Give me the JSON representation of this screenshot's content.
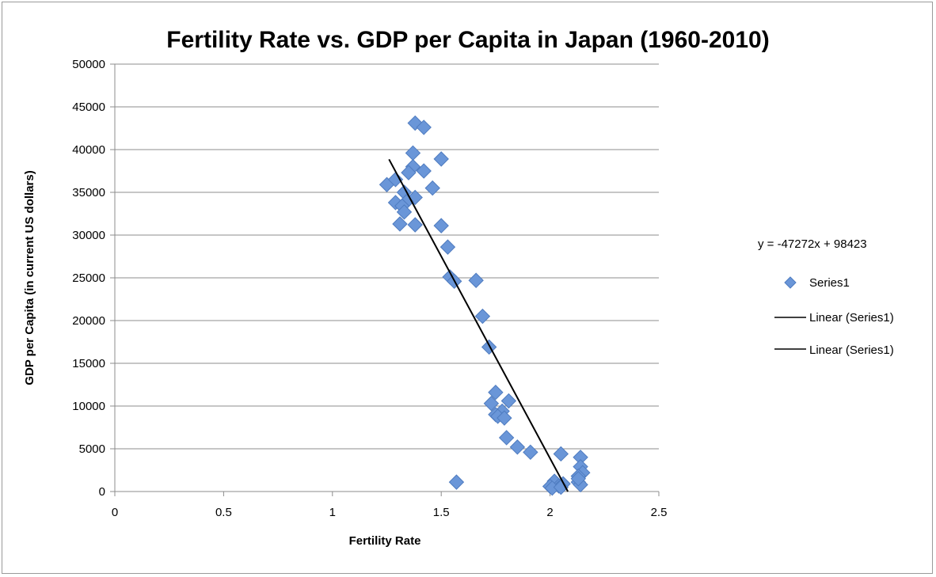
{
  "chart_data": {
    "type": "scatter",
    "title": "Fertility Rate vs. GDP per Capita in Japan (1960-2010)",
    "xlabel": "Fertility Rate",
    "ylabel": "GDP per Capita (in current US dollars)",
    "xlim": [
      0,
      2.5
    ],
    "ylim": [
      0,
      50000
    ],
    "xticks": [
      "0",
      "0.5",
      "1",
      "1.5",
      "2",
      "2.5"
    ],
    "yticks": [
      "0",
      "5000",
      "10000",
      "15000",
      "20000",
      "25000",
      "30000",
      "35000",
      "40000",
      "45000",
      "50000"
    ],
    "grid": "horizontal",
    "legend_position": "right",
    "marker_color": "#6a96d8",
    "series": [
      {
        "name": "Series1",
        "points": [
          [
            1.38,
            43100
          ],
          [
            1.42,
            42600
          ],
          [
            1.37,
            39600
          ],
          [
            1.5,
            38900
          ],
          [
            1.37,
            38000
          ],
          [
            1.42,
            37500
          ],
          [
            1.35,
            37300
          ],
          [
            1.25,
            35900
          ],
          [
            1.29,
            36500
          ],
          [
            1.46,
            35500
          ],
          [
            1.33,
            35000
          ],
          [
            1.38,
            34400
          ],
          [
            1.29,
            33800
          ],
          [
            1.34,
            33900
          ],
          [
            1.32,
            33400
          ],
          [
            1.33,
            32700
          ],
          [
            1.5,
            31100
          ],
          [
            1.31,
            31300
          ],
          [
            1.38,
            31200
          ],
          [
            1.53,
            28600
          ],
          [
            1.54,
            25100
          ],
          [
            1.56,
            24600
          ],
          [
            1.66,
            24700
          ],
          [
            1.69,
            20500
          ],
          [
            1.72,
            16900
          ],
          [
            1.75,
            11600
          ],
          [
            1.73,
            10300
          ],
          [
            1.81,
            10600
          ],
          [
            1.78,
            9400
          ],
          [
            1.75,
            9000
          ],
          [
            1.76,
            8800
          ],
          [
            1.79,
            8600
          ],
          [
            1.8,
            6300
          ],
          [
            1.85,
            5200
          ],
          [
            1.91,
            4600
          ],
          [
            1.57,
            1100
          ],
          [
            2.05,
            4400
          ],
          [
            2.14,
            4000
          ],
          [
            2.14,
            2900
          ],
          [
            2.15,
            2200
          ],
          [
            2.13,
            1800
          ],
          [
            2.02,
            1200
          ],
          [
            2.0,
            600
          ],
          [
            2.04,
            650
          ],
          [
            2.06,
            900
          ],
          [
            2.13,
            1100
          ],
          [
            2.14,
            800
          ],
          [
            2.01,
            400
          ],
          [
            2.05,
            500
          ],
          [
            2.13,
            1500
          ]
        ]
      }
    ],
    "trendline": {
      "type": "linear",
      "slope": -47272,
      "intercept": 98423,
      "x_range": [
        1.26,
        2.082
      ],
      "equation": "y = -47272x + 98423",
      "color": "#000000"
    },
    "legend": [
      "Series1",
      "Linear (Series1)",
      "Linear (Series1)"
    ]
  }
}
